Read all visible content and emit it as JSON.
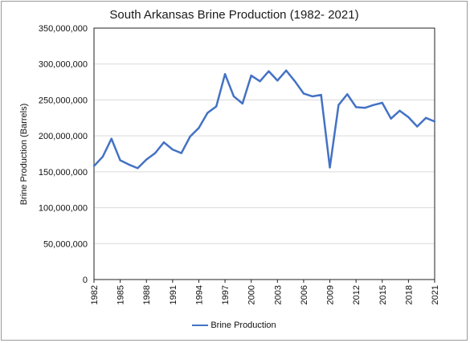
{
  "chart_data": {
    "type": "line",
    "title": "South Arkansas Brine Production (1982- 2021)",
    "xlabel": "",
    "ylabel": "Brine Production (Barrels)",
    "ylim": [
      0,
      350000000
    ],
    "xlim": [
      1982,
      2021
    ],
    "y_ticks": [
      "0",
      "50,000,000",
      "100,000,000",
      "150,000,000",
      "200,000,000",
      "250,000,000",
      "300,000,000",
      "350,000,000"
    ],
    "x_ticks": [
      "1982",
      "1985",
      "1988",
      "1991",
      "1994",
      "1997",
      "2000",
      "2003",
      "2006",
      "2009",
      "2012",
      "2015",
      "2018",
      "2021"
    ],
    "grid": "horizontal",
    "legend_position": "bottom",
    "series": [
      {
        "name": "Brine Production",
        "color": "#4472C4",
        "x": [
          1982,
          1983,
          1984,
          1985,
          1986,
          1987,
          1988,
          1989,
          1990,
          1991,
          1992,
          1993,
          1994,
          1995,
          1996,
          1997,
          1998,
          1999,
          2000,
          2001,
          2002,
          2003,
          2004,
          2005,
          2006,
          2007,
          2008,
          2009,
          2010,
          2011,
          2012,
          2013,
          2014,
          2015,
          2016,
          2017,
          2018,
          2019,
          2020,
          2021
        ],
        "values": [
          158000000,
          171000000,
          196000000,
          166000000,
          160000000,
          155000000,
          167000000,
          176000000,
          191000000,
          181000000,
          176000000,
          199000000,
          211000000,
          232000000,
          241000000,
          286000000,
          255000000,
          245000000,
          284000000,
          276000000,
          290000000,
          277000000,
          291000000,
          276000000,
          259000000,
          255000000,
          257000000,
          156000000,
          243000000,
          258000000,
          240000000,
          239000000,
          243000000,
          246000000,
          224000000,
          235000000,
          226000000,
          213000000,
          225000000,
          220000000
        ]
      }
    ]
  }
}
